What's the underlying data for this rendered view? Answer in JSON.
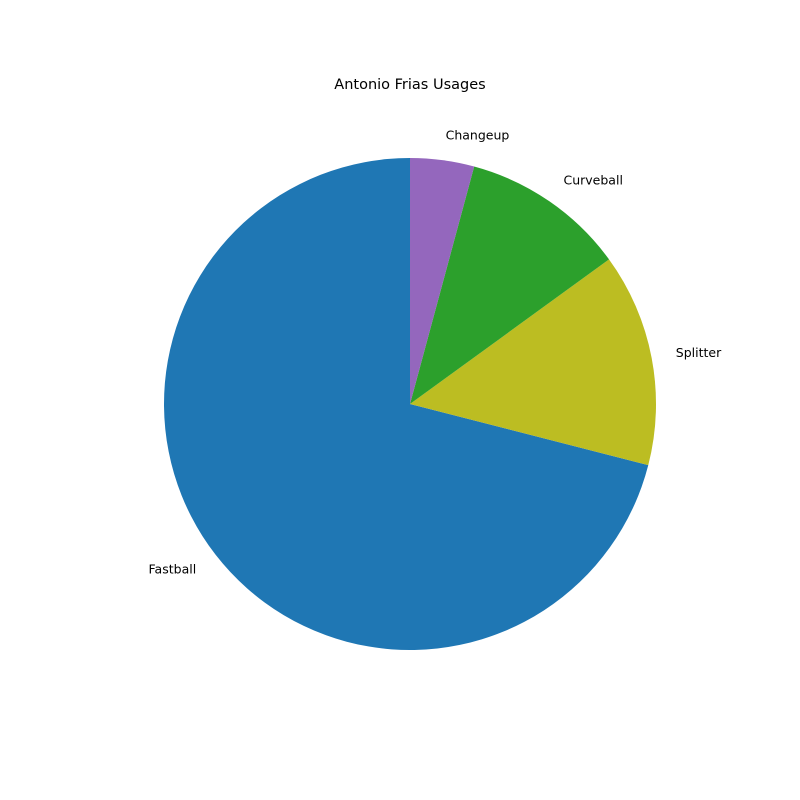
{
  "chart_data": {
    "type": "pie",
    "title": "Antonio Frias Usages",
    "start_angle_deg": 90,
    "direction": "counterclockwise",
    "slices": [
      {
        "label": "Fastball",
        "value": 71.0,
        "color": "#1f77b4"
      },
      {
        "label": "Splitter",
        "value": 14.0,
        "color": "#bcbd22"
      },
      {
        "label": "Curveball",
        "value": 10.8,
        "color": "#2ca02c"
      },
      {
        "label": "Changeup",
        "value": 4.2,
        "color": "#9467bd"
      }
    ]
  }
}
